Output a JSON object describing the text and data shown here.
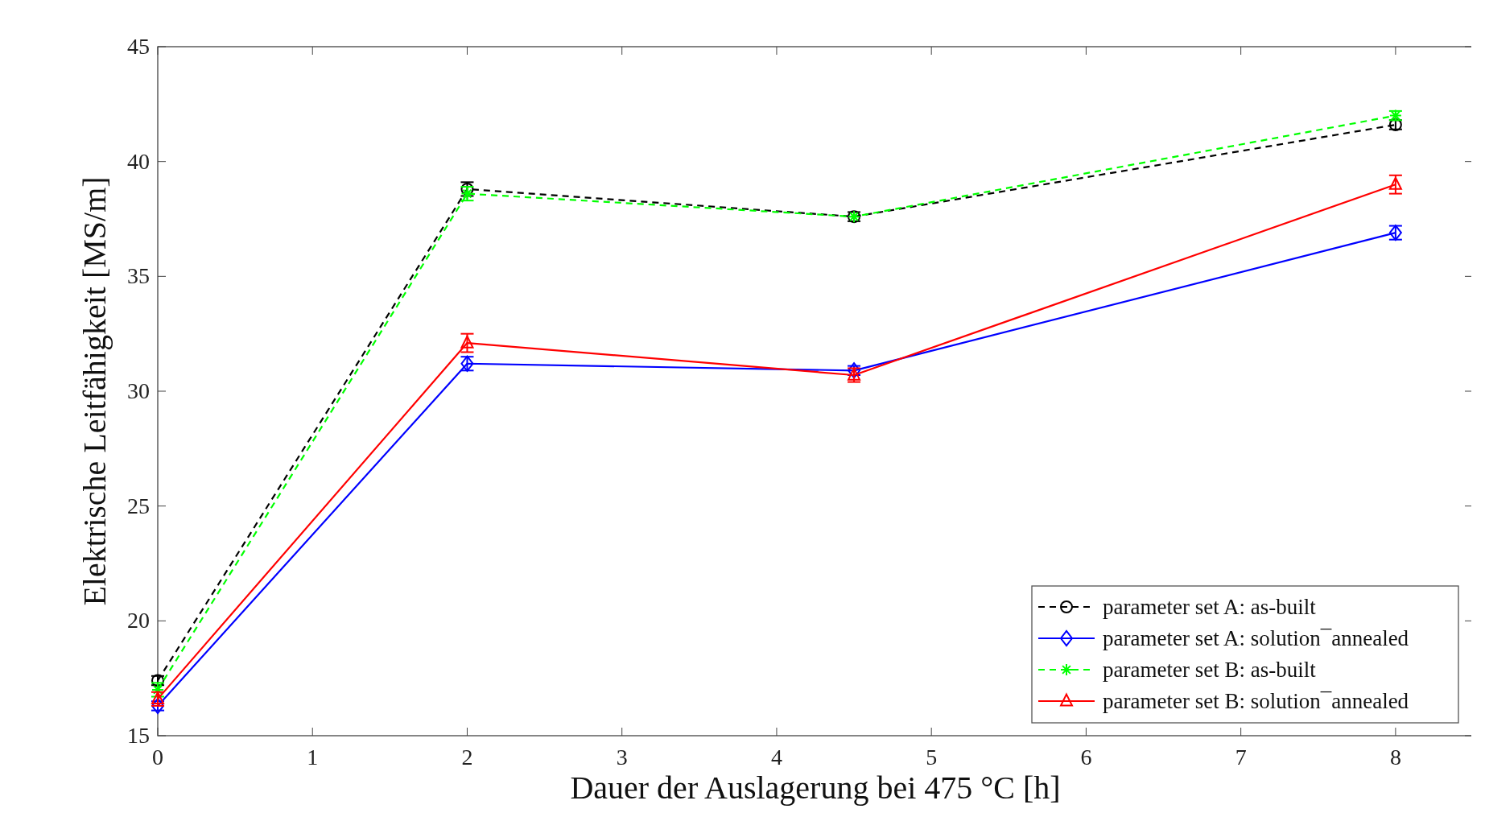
{
  "chart_data": {
    "type": "line",
    "xlabel": "Dauer der Auslagerung bei 475 °C [h]",
    "ylabel": "Elektrische Leitfähigkeit [MS/m]",
    "x": [
      0,
      2,
      4.5,
      8
    ],
    "xlim": [
      0,
      8.5
    ],
    "xticks": [
      0,
      1,
      2,
      3,
      4,
      5,
      6,
      7,
      8
    ],
    "ylim": [
      15,
      45
    ],
    "yticks": [
      15,
      20,
      25,
      30,
      35,
      40,
      45
    ],
    "grid": false,
    "legend": "bottom right",
    "series": [
      {
        "name": "parameter set A: as-built",
        "color": "#000000",
        "marker": "circle",
        "line_style": "dashed",
        "values": [
          17.4,
          38.8,
          37.6,
          41.6
        ],
        "errors": [
          0.2,
          0.3,
          0.2,
          0.2
        ]
      },
      {
        "name": "parameter set A: solution¯annealed",
        "color": "#0000ff",
        "marker": "diamond",
        "line_style": "solid",
        "values": [
          16.3,
          31.2,
          30.9,
          36.9
        ],
        "errors": [
          0.2,
          0.3,
          0.2,
          0.3
        ]
      },
      {
        "name": "parameter set B: as-built",
        "color": "#00ff00",
        "marker": "cross",
        "line_style": "dashed",
        "values": [
          17.0,
          38.6,
          37.6,
          42.0
        ],
        "errors": [
          0.3,
          0.3,
          null,
          0.2
        ]
      },
      {
        "name": "parameter set B: solution¯annealed",
        "color": "#ff0000",
        "marker": "triangle",
        "line_style": "solid",
        "values": [
          16.6,
          32.1,
          30.7,
          39.0
        ],
        "errors": [
          0.3,
          0.4,
          0.3,
          0.4
        ]
      }
    ]
  }
}
